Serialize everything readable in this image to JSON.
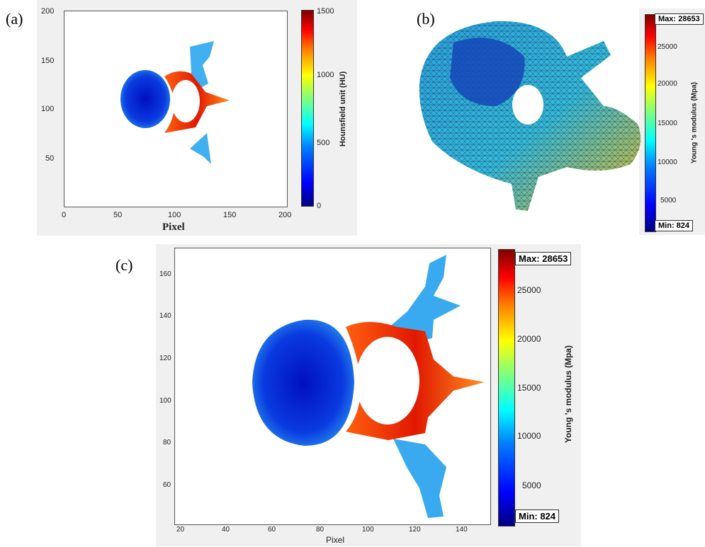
{
  "panels": {
    "a": {
      "label": "(a)",
      "xlabel": "Pixel",
      "xticks": [
        "0",
        "50",
        "100",
        "150",
        "200"
      ],
      "yticks": [
        "200",
        "150",
        "100",
        "50"
      ],
      "colorbar_title": "Hounsfield unit (HU)",
      "colorbar_ticks": [
        "1500",
        "1000",
        "500",
        "0"
      ]
    },
    "b": {
      "label": "(b)",
      "max_label": "Max: 28653",
      "min_label": "Min: 824",
      "colorbar_title": "Young 's modulus (Mpa)",
      "colorbar_ticks": [
        "25000",
        "20000",
        "15000",
        "10000",
        "5000"
      ]
    },
    "c": {
      "label": "(c)",
      "xlabel": "Pixel",
      "xticks": [
        "20",
        "40",
        "60",
        "80",
        "100",
        "120",
        "140"
      ],
      "yticks": [
        "160",
        "140",
        "120",
        "100",
        "80",
        "60"
      ],
      "max_label": "Max: 28653",
      "min_label": "Min: 824",
      "colorbar_title": "Young 's modulus (Mpa)",
      "colorbar_ticks": [
        "25000",
        "20000",
        "15000",
        "10000",
        "5000"
      ]
    }
  },
  "colors": {
    "low": "#0000cc",
    "mid": "#33bbee",
    "high": "#dd1100",
    "panel_bg": "#f0f0f0"
  }
}
